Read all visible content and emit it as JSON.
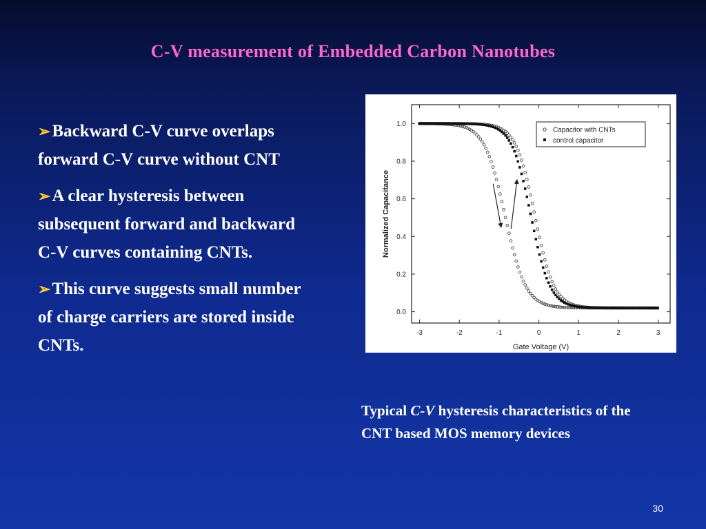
{
  "slide": {
    "title": "C-V measurement of Embedded Carbon Nanotubes",
    "bullets": [
      "Backward C-V curve overlaps forward C-V curve without CNT",
      "A clear hysteresis between subsequent forward and backward C-V curves containing CNTs.",
      "This curve suggests small number of charge carriers are stored inside CNTs."
    ],
    "caption": {
      "prefix": "Typical ",
      "italic": "C-V",
      "suffix": " hysteresis characteristics of the CNT based MOS memory devices"
    },
    "page_number": "30",
    "colors": {
      "title": "#ff66cc",
      "bullet_arrow": "#ffcc33",
      "text": "#ffffff"
    }
  },
  "chart_data": {
    "type": "scatter",
    "xlabel": "Gate Voltage (V)",
    "ylabel": "Normalized Capacitance",
    "xlim": [
      -3.2,
      3.3
    ],
    "ylim": [
      -0.06,
      1.1
    ],
    "xticks": [
      "-3",
      "-2",
      "-1",
      "0",
      "1",
      "2",
      "3"
    ],
    "yticks": [
      "0.0",
      "0.2",
      "0.4",
      "0.6",
      "0.8",
      "1.0"
    ],
    "legend_position": "top-right",
    "series": [
      {
        "name": "Capacitor with CNTs",
        "marker": "open-circle",
        "branches": [
          {
            "direction": "forward",
            "v0": -0.85,
            "w": 0.26
          },
          {
            "direction": "backward",
            "v0": -0.1,
            "w": 0.24
          }
        ]
      },
      {
        "name": "control capacitor",
        "marker": "filled-square",
        "branches": [
          {
            "direction": "forward",
            "v0": -0.2,
            "w": 0.24
          },
          {
            "direction": "backward",
            "v0": -0.2,
            "w": 0.24
          }
        ]
      }
    ],
    "arrows": [
      {
        "from": [
          -1.15,
          0.68
        ],
        "to": [
          -0.95,
          0.45
        ]
      },
      {
        "from": [
          -0.7,
          0.44
        ],
        "to": [
          -0.55,
          0.7
        ]
      }
    ]
  }
}
